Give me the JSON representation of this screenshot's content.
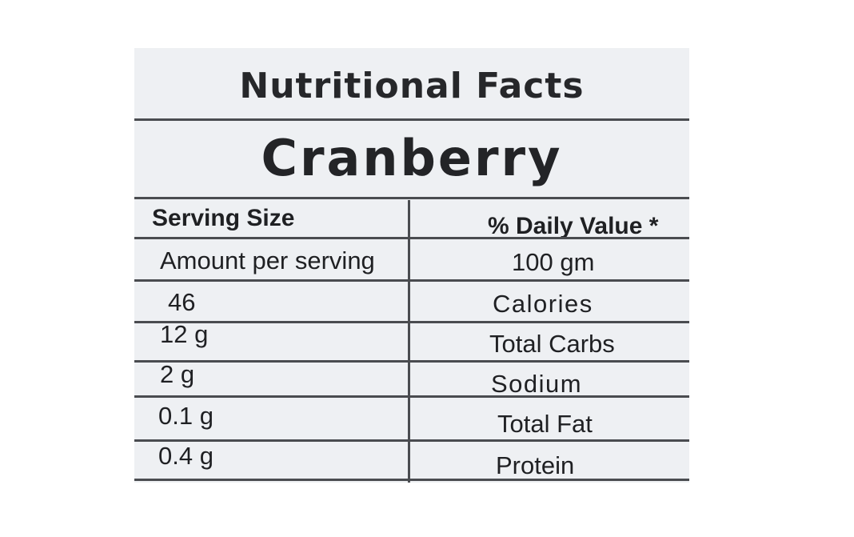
{
  "label": {
    "title": "Nutritional Facts",
    "product": "Cranberry",
    "header": {
      "left": "Serving Size",
      "right": "% Daily Value *"
    },
    "rows": [
      {
        "left": "Amount per serving",
        "right": "100 gm"
      },
      {
        "left": "46",
        "right": "Calories"
      },
      {
        "left": "12 g",
        "right": "Total Carbs"
      },
      {
        "left": "2 g",
        "right": "Sodium"
      },
      {
        "left": "0.1 g",
        "right": "Total Fat"
      },
      {
        "left": "0.4 g",
        "right": "Protein"
      }
    ]
  },
  "colors": {
    "label_background": "#eef0f3",
    "text": "#1e1f22",
    "rules": "#4a4c50"
  }
}
